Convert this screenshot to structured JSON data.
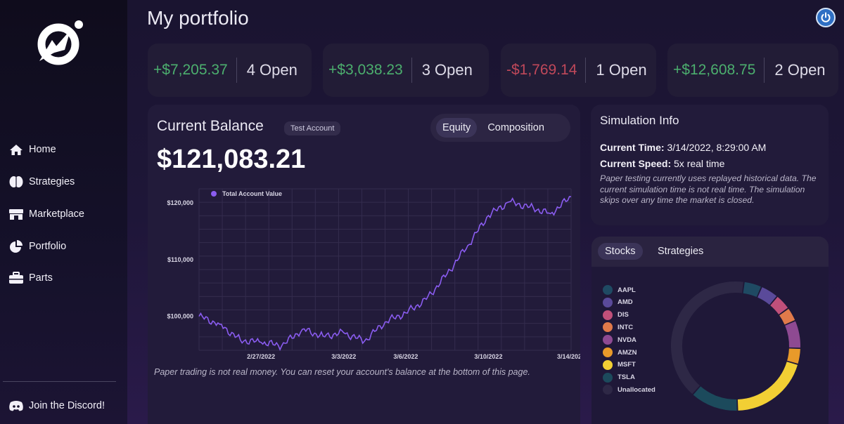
{
  "app": {
    "page_title": "My portfolio"
  },
  "sidebar": {
    "logo_icon": "rocket-arrow-logo",
    "items": [
      {
        "label": "Home",
        "icon": "home-icon"
      },
      {
        "label": "Strategies",
        "icon": "brain-icon"
      },
      {
        "label": "Marketplace",
        "icon": "store-icon"
      },
      {
        "label": "Portfolio",
        "icon": "pie-chart-icon"
      },
      {
        "label": "Parts",
        "icon": "toolbox-icon"
      }
    ],
    "discord_label": "Join the Discord!"
  },
  "stats": [
    {
      "amount": "+$7,205.37",
      "open": "4 Open",
      "tone": "positive"
    },
    {
      "amount": "+$3,038.23",
      "open": "3 Open",
      "tone": "positive"
    },
    {
      "amount": "-$1,769.14",
      "open": "1 Open",
      "tone": "negative"
    },
    {
      "amount": "+$12,608.75",
      "open": "2 Open",
      "tone": "positive"
    }
  ],
  "balance": {
    "title": "Current Balance",
    "badge": "Test Account",
    "value": "$121,083.21",
    "tabs": [
      "Equity",
      "Composition"
    ],
    "active_tab": "Equity",
    "disclaimer": "Paper trading is not real money. You can reset your account's balance at the bottom of this page."
  },
  "chart_data": {
    "type": "line",
    "series": [
      {
        "name": "Total Account Value",
        "color": "#8a5cf0",
        "x": [
          "2/24/2022",
          "2/25/2022",
          "2/26/2022",
          "2/27/2022",
          "2/28/2022",
          "3/1/2022",
          "3/2/2022",
          "3/3/2022",
          "3/4/2022",
          "3/5/2022",
          "3/6/2022",
          "3/7/2022",
          "3/8/2022",
          "3/9/2022",
          "3/10/2022",
          "3/11/2022",
          "3/12/2022",
          "3/13/2022",
          "3/14/2022"
        ],
        "values": [
          100000,
          98600,
          95800,
          95400,
          94800,
          97700,
          96500,
          97100,
          95600,
          99000,
          100600,
          103000,
          107500,
          112500,
          117800,
          120200,
          119300,
          118100,
          121100
        ]
      }
    ],
    "x_ticks": [
      "2/27/2022",
      "3/3/2022",
      "3/6/2022",
      "3/10/2022",
      "3/14/2022"
    ],
    "y_ticks": [
      "$100,000",
      "$110,000",
      "$120,000"
    ],
    "y_tick_values": [
      100000,
      110000,
      120000
    ],
    "ylim": [
      94000,
      122500
    ],
    "legend_placement": "top-left",
    "grid": true
  },
  "simulation": {
    "title": "Simulation Info",
    "time_label": "Current Time:",
    "time_value": "3/14/2022, 8:29:00 AM",
    "speed_label": "Current Speed:",
    "speed_value": "5x real time",
    "note": "Paper testing currently uses replayed historical data. The current simulation time is not real time. The simulation skips over any time the market is closed."
  },
  "allocation": {
    "tabs": [
      "Stocks",
      "Strategies"
    ],
    "active_tab": "Stocks",
    "legend": [
      {
        "label": "AAPL",
        "color": "#1f4a63"
      },
      {
        "label": "AMD",
        "color": "#5a4a9a"
      },
      {
        "label": "DIS",
        "color": "#c0507a"
      },
      {
        "label": "INTC",
        "color": "#e07a4a"
      },
      {
        "label": "NVDA",
        "color": "#8e4a92"
      },
      {
        "label": "AMZN",
        "color": "#e89a2a"
      },
      {
        "label": "MSFT",
        "color": "#f2cf34"
      },
      {
        "label": "TSLA",
        "color": "#1c4a5c"
      },
      {
        "label": "Unallocated",
        "color": "#2e2846"
      }
    ],
    "shares": [
      0.045,
      0.045,
      0.04,
      0.035,
      0.07,
      0.04,
      0.2,
      0.12,
      0.405
    ]
  }
}
